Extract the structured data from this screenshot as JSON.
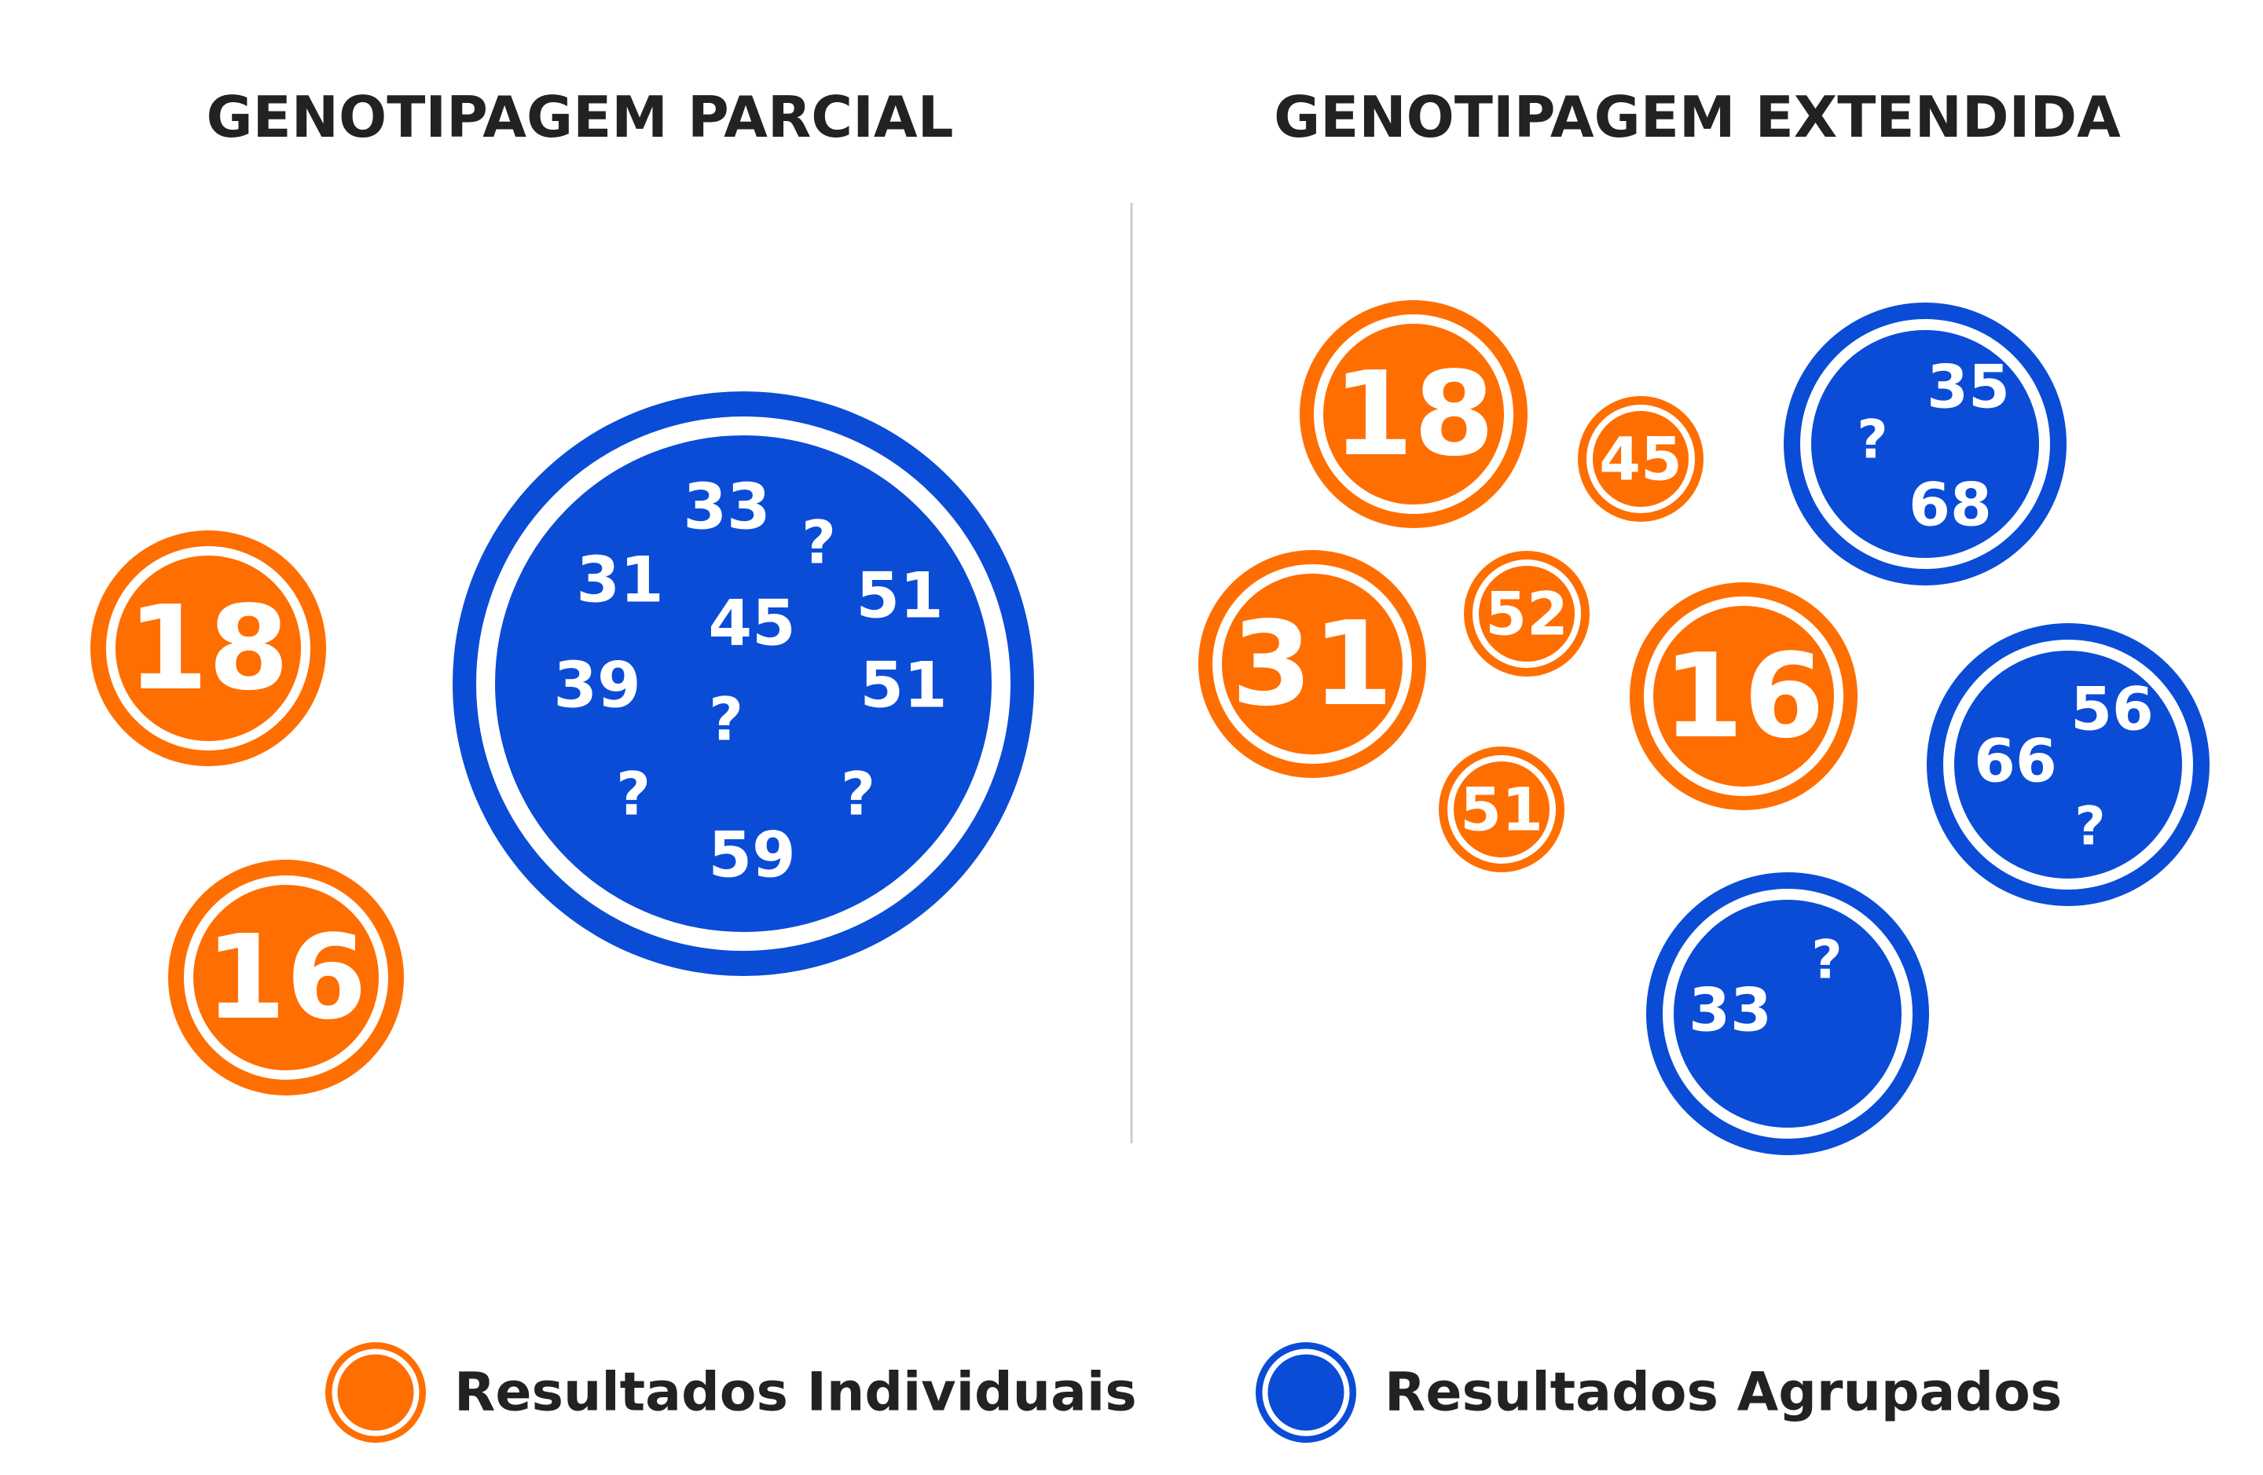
{
  "titles": {
    "left": "GENOTIPAGEM PARCIAL",
    "right": "GENOTIPAGEM EXTENDIDA"
  },
  "colors": {
    "individual": "#ff6e00",
    "grouped": "#0a4cd6",
    "divider": "#cccccc",
    "text": "#222222"
  },
  "partial": {
    "individual": [
      "18",
      "16"
    ],
    "grouped": [
      "33",
      "31",
      "?",
      "51",
      "45",
      "39",
      "51",
      "?",
      "?",
      "?",
      "59"
    ]
  },
  "extended": {
    "individual": [
      "18",
      "45",
      "31",
      "52",
      "16",
      "51"
    ],
    "grouped": [
      [
        "35",
        "?",
        "68"
      ],
      [
        "56",
        "66",
        "?"
      ],
      [
        "?",
        "33"
      ]
    ]
  },
  "legend": {
    "individual": "Resultados Individuais",
    "grouped": "Resultados Agrupados"
  }
}
